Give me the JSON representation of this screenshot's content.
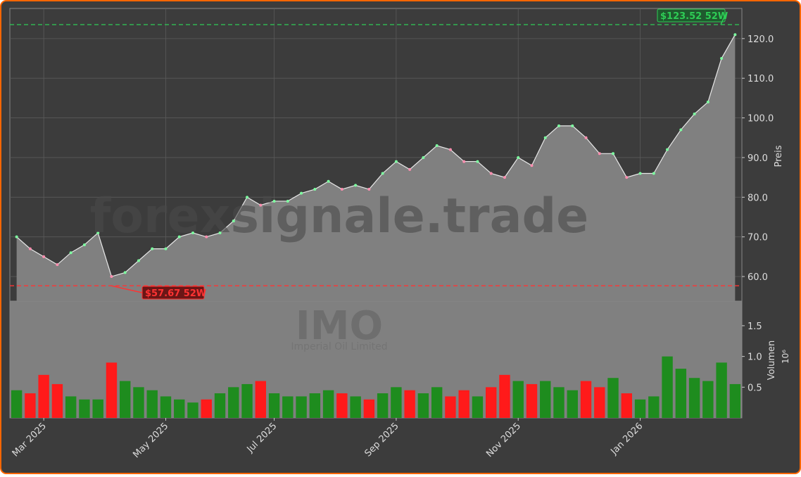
{
  "chart_data": {
    "type": "stock",
    "symbol": "IMO",
    "company": "Imperial Oil Limited",
    "watermark": "forexsignale.trade",
    "price_label": "Preis",
    "volume_label": "Volumen",
    "volume_scale": "10⁶",
    "categories": [
      null,
      null,
      "Mar 2025",
      null,
      null,
      null,
      null,
      null,
      null,
      null,
      null,
      "May 2025",
      null,
      null,
      null,
      null,
      null,
      null,
      null,
      "Jul 2025",
      null,
      null,
      null,
      null,
      null,
      null,
      null,
      null,
      "Sep 2025",
      null,
      null,
      null,
      null,
      null,
      null,
      null,
      null,
      "Nov 2025",
      null,
      null,
      null,
      null,
      null,
      null,
      null,
      null,
      "Jan 2026",
      null,
      null,
      null,
      null,
      null,
      null,
      null
    ],
    "close": [
      70,
      67,
      65,
      63,
      66,
      68,
      71,
      60,
      61,
      64,
      67,
      67,
      70,
      71,
      70,
      71,
      74,
      80,
      78,
      79,
      79,
      81,
      82,
      84,
      82,
      83,
      82,
      86,
      89,
      87,
      90,
      93,
      92,
      89,
      89,
      86,
      85,
      90,
      88,
      95,
      98,
      98,
      95,
      91,
      91,
      85,
      86,
      86,
      92,
      97,
      101,
      104,
      115,
      121
    ],
    "volume": [
      0.45,
      0.4,
      0.7,
      0.55,
      0.35,
      0.3,
      0.3,
      0.9,
      0.6,
      0.5,
      0.45,
      0.35,
      0.3,
      0.25,
      0.3,
      0.4,
      0.5,
      0.55,
      0.6,
      0.4,
      0.35,
      0.35,
      0.4,
      0.45,
      0.4,
      0.35,
      0.3,
      0.4,
      0.5,
      0.45,
      0.4,
      0.5,
      0.35,
      0.45,
      0.35,
      0.5,
      0.7,
      0.6,
      0.55,
      0.6,
      0.5,
      0.45,
      0.6,
      0.5,
      0.65,
      0.4,
      0.3,
      0.35,
      1.0,
      0.8,
      0.65,
      0.6,
      0.9,
      0.55
    ],
    "up_color": "#1e8c1e",
    "down_color": "#ff1a1a",
    "area_color": "#808080",
    "ylim": [
      53.8,
      127.6
    ],
    "yticks": [
      {
        "value": 60,
        "label": "60.0"
      },
      {
        "value": 70,
        "label": "70.0"
      },
      {
        "value": 80,
        "label": "80.0"
      },
      {
        "value": 90,
        "label": "90.0"
      },
      {
        "value": 100,
        "label": "100.0"
      },
      {
        "value": 110,
        "label": "110.0"
      },
      {
        "value": 120,
        "label": "120.0"
      }
    ],
    "y2lim": [
      0,
      1.9
    ],
    "y2ticks": [
      0.5,
      {
        "value": 1,
        "label": "1.0"
      },
      1.5
    ],
    "high": {
      "value": 123.52,
      "label": "$123.52 52W",
      "color": "#2ecc55"
    },
    "low": {
      "value": 57.67,
      "label": "$57.67 52W",
      "color": "#ff3333"
    },
    "grid": true
  }
}
